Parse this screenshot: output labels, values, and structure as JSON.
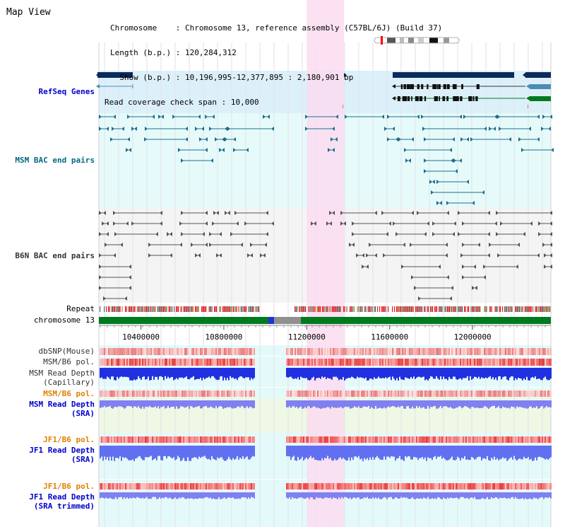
{
  "page": {
    "title": "Map View"
  },
  "info": {
    "chromosome_label": "Chromosome   ",
    "chromosome_value": "Chromosome 13, reference assembly (C57BL/6J) (Build 37)",
    "length_label": "Length (b.p.)",
    "length_value": "120,284,312",
    "show_label": "  Show (b.p.)",
    "show_value": "10,196,995-12,377,895 : 2,180,901 bp",
    "coverage_label": "Read coverage check span",
    "coverage_value": "10,000"
  },
  "tracks": {
    "refseq_genes": "RefSeq Genes",
    "msm_bac": "MSM BAC end pairs",
    "b6n_bac": "B6N BAC end pairs",
    "repeat": "Repeat",
    "chromosome": "chromosome 13",
    "dbsnp": "dbSNP(Mouse)",
    "msm_b6_pol_1": "MSM/B6 pol.",
    "msm_depth_cap_1": "MSM Read Depth",
    "msm_depth_cap_2": "(Capillary)",
    "msm_b6_pol_2": "MSM/B6 pol.",
    "msm_depth_sra_1": "MSM Read Depth",
    "msm_depth_sra_2": "(SRA)",
    "jf1_b6_pol_1": "JF1/B6 pol.",
    "jf1_depth_sra_1": "JF1 Read Depth",
    "jf1_depth_sra_2": "(SRA)",
    "jf1_b6_pol_2": "JF1/B6 pol.",
    "jf1_depth_trim_1": "JF1 Read Depth",
    "jf1_depth_trim_2": "(SRA trimmed)"
  },
  "axis": {
    "ticks": [
      "10400000",
      "10800000",
      "11200000",
      "11600000",
      "12000000"
    ],
    "tick_values": [
      10400000,
      10800000,
      11200000,
      11600000,
      12000000
    ],
    "range": [
      10196995,
      12377895
    ]
  },
  "highlight_region": [
    11200000,
    11380000
  ],
  "colors": {
    "refseq_bg": "#dcf0fa",
    "msm_bg": "#e6fafa",
    "b6n_bg": "#f4f4f4",
    "highlight": "#fadcf0",
    "gene_dark": "#0a2a5a",
    "gene_mid": "#4a8cb4",
    "gene_green": "#007a1e",
    "msm_pair": "#1e6e8c",
    "b6n_pair": "#555555",
    "chrom_green": "#007a1e",
    "snp_red": "#f07070",
    "depth_blue": "#2030e0",
    "depth_light": "#8080f0"
  }
}
